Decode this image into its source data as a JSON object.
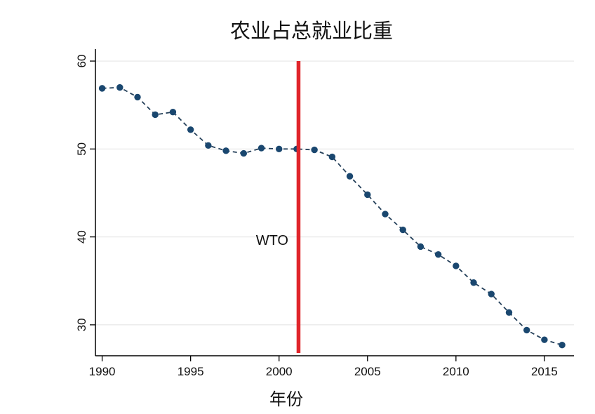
{
  "title": "农业占总就业比重",
  "chart_data": {
    "type": "line",
    "title": "农业占总就业比重",
    "xlabel": "年份",
    "ylabel": "",
    "x": [
      1990,
      1991,
      1992,
      1993,
      1994,
      1995,
      1996,
      1997,
      1998,
      1999,
      2000,
      2001,
      2002,
      2003,
      2004,
      2005,
      2006,
      2007,
      2008,
      2009,
      2010,
      2011,
      2012,
      2013,
      2014,
      2015,
      2016
    ],
    "series": [
      {
        "name": "农业占总就业比重",
        "values": [
          56.9,
          57.0,
          55.9,
          53.9,
          54.2,
          52.2,
          50.4,
          49.8,
          49.5,
          50.1,
          50.0,
          50.0,
          49.9,
          49.1,
          46.9,
          44.8,
          42.6,
          40.8,
          38.9,
          38.0,
          36.7,
          34.8,
          33.5,
          31.4,
          29.4,
          28.3,
          27.7
        ]
      }
    ],
    "x_ticks": [
      1990,
      1995,
      2000,
      2005,
      2010,
      2015
    ],
    "y_ticks": [
      30,
      40,
      50,
      60
    ],
    "xlim": [
      1989.62,
      2016.67
    ],
    "ylim": [
      26.48,
      61.36
    ],
    "grid": "horizontal",
    "line_style": "dashed",
    "marker": "circle",
    "legend": "none",
    "annotation": {
      "label": "WTO",
      "x": 2001.1
    },
    "colors": {
      "marker": "#1a476f",
      "line": "#25405a",
      "event_line": "#e0252b",
      "grid": "#e7e7e7",
      "axis": "#000000",
      "text": "#111111"
    }
  }
}
